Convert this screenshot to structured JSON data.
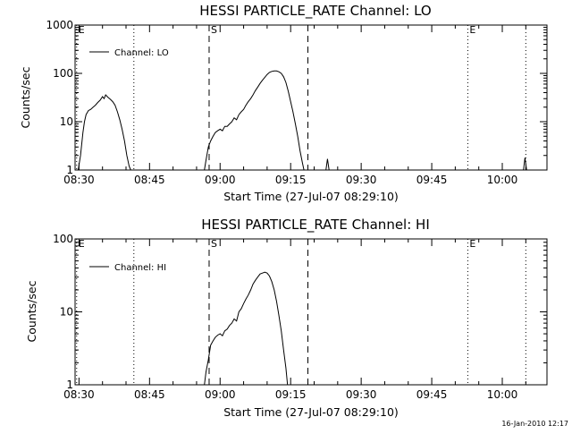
{
  "footer": "16-Jan-2010 12:17",
  "chart_data": [
    {
      "type": "line",
      "title": "HESSI PARTICLE_RATE Channel: LO",
      "xlabel": "Start Time (27-Jul-07 08:29:10)",
      "ylabel": "Counts/sec",
      "yscale": "log",
      "ylim": [
        1,
        1000
      ],
      "xlim": [
        "08:29:10",
        "10:09:30"
      ],
      "x_ticks": [
        "08:30",
        "08:45",
        "09:00",
        "09:15",
        "09:30",
        "09:45",
        "10:00"
      ],
      "y_ticks": [
        {
          "value": 1,
          "label": "1"
        },
        {
          "value": 10,
          "label": "10"
        },
        {
          "value": 100,
          "label": "100"
        },
        {
          "value": 1000,
          "label": "1000"
        }
      ],
      "legend": {
        "label": "Channel: LO",
        "position": "top-left"
      },
      "grid": false,
      "markers": [
        {
          "time": "08:29:30",
          "style": "dotted",
          "label": "E"
        },
        {
          "time": "08:41:40",
          "style": "dotted",
          "label": ""
        },
        {
          "time": "08:57:40",
          "style": "dashed",
          "label": "S"
        },
        {
          "time": "09:18:40",
          "style": "dashed",
          "label": ""
        },
        {
          "time": "09:52:40",
          "style": "dotted",
          "label": "E"
        },
        {
          "time": "10:05:00",
          "style": "dotted",
          "label": ""
        }
      ],
      "series": [
        {
          "segments": [
            [
              [
                "08:29:50",
                1
              ],
              [
                "08:30:20",
                2
              ],
              [
                "08:30:50",
                6
              ],
              [
                "08:31:10",
                10
              ],
              [
                "08:31:30",
                14
              ],
              [
                "08:32:00",
                17
              ],
              [
                "08:32:30",
                18
              ],
              [
                "08:33:00",
                20
              ],
              [
                "08:33:30",
                22
              ],
              [
                "08:34:00",
                25
              ],
              [
                "08:34:30",
                28
              ],
              [
                "08:35:00",
                33
              ],
              [
                "08:35:20",
                30
              ],
              [
                "08:35:40",
                36
              ],
              [
                "08:36:10",
                32
              ],
              [
                "08:36:40",
                29
              ],
              [
                "08:37:10",
                26
              ],
              [
                "08:37:40",
                22
              ],
              [
                "08:38:10",
                16
              ],
              [
                "08:38:40",
                11
              ],
              [
                "08:39:10",
                7
              ],
              [
                "08:39:40",
                4
              ],
              [
                "08:40:10",
                2
              ],
              [
                "08:40:40",
                1.2
              ],
              [
                "08:41:00",
                1
              ]
            ],
            [
              [
                "08:56:40",
                1
              ],
              [
                "08:57:00",
                1.6
              ],
              [
                "08:57:30",
                3
              ],
              [
                "08:58:00",
                4
              ],
              [
                "08:58:30",
                5
              ],
              [
                "08:59:00",
                6
              ],
              [
                "08:59:30",
                6.5
              ],
              [
                "09:00:00",
                7
              ],
              [
                "09:00:30",
                6.5
              ],
              [
                "09:01:00",
                8
              ],
              [
                "09:01:30",
                8
              ],
              [
                "09:02:00",
                9
              ],
              [
                "09:02:30",
                10
              ],
              [
                "09:03:00",
                12
              ],
              [
                "09:03:30",
                11
              ],
              [
                "09:04:00",
                14
              ],
              [
                "09:04:30",
                16
              ],
              [
                "09:05:00",
                18
              ],
              [
                "09:05:30",
                22
              ],
              [
                "09:06:00",
                26
              ],
              [
                "09:06:30",
                30
              ],
              [
                "09:07:00",
                36
              ],
              [
                "09:07:30",
                44
              ],
              [
                "09:08:00",
                52
              ],
              [
                "09:08:30",
                62
              ],
              [
                "09:09:00",
                72
              ],
              [
                "09:09:30",
                83
              ],
              [
                "09:10:00",
                95
              ],
              [
                "09:10:30",
                105
              ],
              [
                "09:11:00",
                110
              ],
              [
                "09:11:30",
                112
              ],
              [
                "09:12:00",
                112
              ],
              [
                "09:12:30",
                108
              ],
              [
                "09:13:00",
                100
              ],
              [
                "09:13:30",
                85
              ],
              [
                "09:14:00",
                65
              ],
              [
                "09:14:30",
                42
              ],
              [
                "09:15:00",
                26
              ],
              [
                "09:15:30",
                16
              ],
              [
                "09:16:00",
                9
              ],
              [
                "09:16:30",
                5
              ],
              [
                "09:17:00",
                2.5
              ],
              [
                "09:17:30",
                1.4
              ],
              [
                "09:17:50",
                1
              ]
            ],
            [
              [
                "09:22:30",
                1
              ],
              [
                "09:22:50",
                1.7
              ],
              [
                "09:23:10",
                1
              ]
            ],
            [
              [
                "10:04:30",
                1
              ],
              [
                "10:04:50",
                1.8
              ],
              [
                "10:05:10",
                1
              ]
            ]
          ]
        }
      ]
    },
    {
      "type": "line",
      "title": "HESSI PARTICLE_RATE Channel: HI",
      "xlabel": "Start Time (27-Jul-07 08:29:10)",
      "ylabel": "Counts/sec",
      "yscale": "log",
      "ylim": [
        1,
        100
      ],
      "xlim": [
        "08:29:10",
        "10:09:30"
      ],
      "x_ticks": [
        "08:30",
        "08:45",
        "09:00",
        "09:15",
        "09:30",
        "09:45",
        "10:00"
      ],
      "y_ticks": [
        {
          "value": 1,
          "label": "1"
        },
        {
          "value": 10,
          "label": "10"
        },
        {
          "value": 100,
          "label": "100"
        }
      ],
      "legend": {
        "label": "Channel: HI",
        "position": "top-left"
      },
      "grid": false,
      "markers": [
        {
          "time": "08:29:30",
          "style": "dotted",
          "label": "E"
        },
        {
          "time": "08:41:40",
          "style": "dotted",
          "label": ""
        },
        {
          "time": "08:57:40",
          "style": "dashed",
          "label": "S"
        },
        {
          "time": "09:18:40",
          "style": "dashed",
          "label": ""
        },
        {
          "time": "09:52:40",
          "style": "dotted",
          "label": "E"
        },
        {
          "time": "10:05:00",
          "style": "dotted",
          "label": ""
        }
      ],
      "series": [
        {
          "segments": [
            [
              [
                "08:56:40",
                1
              ],
              [
                "08:57:00",
                1.5
              ],
              [
                "08:57:30",
                2.2
              ],
              [
                "08:58:00",
                3.5
              ],
              [
                "08:58:30",
                4
              ],
              [
                "08:59:00",
                4.5
              ],
              [
                "08:59:30",
                4.8
              ],
              [
                "09:00:00",
                5
              ],
              [
                "09:00:30",
                4.7
              ],
              [
                "09:01:00",
                5.5
              ],
              [
                "09:01:30",
                5.8
              ],
              [
                "09:02:00",
                6.5
              ],
              [
                "09:02:30",
                7
              ],
              [
                "09:03:00",
                8
              ],
              [
                "09:03:30",
                7.5
              ],
              [
                "09:04:00",
                10
              ],
              [
                "09:04:30",
                11
              ],
              [
                "09:05:00",
                13
              ],
              [
                "09:05:30",
                15
              ],
              [
                "09:06:00",
                17
              ],
              [
                "09:06:30",
                20
              ],
              [
                "09:07:00",
                24
              ],
              [
                "09:07:30",
                27
              ],
              [
                "09:08:00",
                30
              ],
              [
                "09:08:30",
                33
              ],
              [
                "09:09:00",
                34
              ],
              [
                "09:09:30",
                35
              ],
              [
                "09:10:00",
                34
              ],
              [
                "09:10:30",
                31
              ],
              [
                "09:11:00",
                26
              ],
              [
                "09:11:30",
                20
              ],
              [
                "09:12:00",
                14
              ],
              [
                "09:12:30",
                9
              ],
              [
                "09:13:00",
                5.5
              ],
              [
                "09:13:30",
                3
              ],
              [
                "09:14:00",
                1.7
              ],
              [
                "09:14:20",
                1
              ]
            ]
          ]
        }
      ]
    }
  ]
}
